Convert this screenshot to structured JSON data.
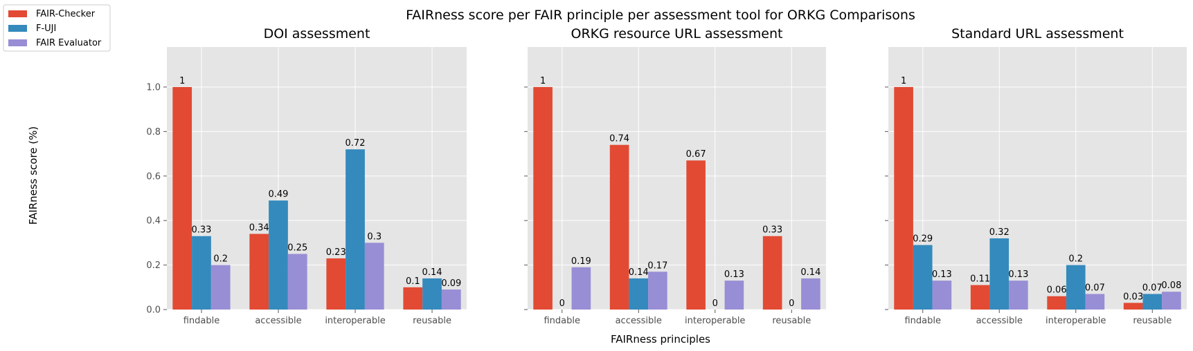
{
  "suptitle": "FAIRness score per FAIR principle per assessment tool for ORKG Comparisons",
  "ylabel": "FAIRness score (%)",
  "xlabel": "FAIRness principles",
  "colors": {
    "FAIR-Checker": "#E24A33",
    "F-UJI": "#348ABD",
    "FAIR Evaluator": "#988ED5",
    "panel_bg": "#E5E5E5",
    "grid": "#FFFFFF"
  },
  "legend": [
    "FAIR-Checker",
    "F-UJI",
    "FAIR Evaluator"
  ],
  "chart_data": [
    {
      "type": "bar",
      "title": "DOI assessment",
      "categories": [
        "findable",
        "accessible",
        "interoperable",
        "reusable"
      ],
      "ylim": [
        0,
        1.18
      ],
      "yticks": [
        "0.0",
        "0.2",
        "0.4",
        "0.6",
        "0.8",
        "1.0"
      ],
      "grid": true,
      "series": [
        {
          "name": "FAIR-Checker",
          "values": [
            1,
            0.34,
            0.23,
            0.1
          ],
          "labels": [
            "1",
            "0.34",
            "0.23",
            "0.1"
          ]
        },
        {
          "name": "F-UJI",
          "values": [
            0.33,
            0.49,
            0.72,
            0.14
          ],
          "labels": [
            "0.33",
            "0.49",
            "0.72",
            "0.14"
          ]
        },
        {
          "name": "FAIR Evaluator",
          "values": [
            0.2,
            0.25,
            0.3,
            0.09
          ],
          "labels": [
            "0.2",
            "0.25",
            "0.3",
            "0.09"
          ]
        }
      ]
    },
    {
      "type": "bar",
      "title": "ORKG resource URL assessment",
      "categories": [
        "findable",
        "accessible",
        "interoperable",
        "reusable"
      ],
      "ylim": [
        0,
        1.18
      ],
      "grid": true,
      "series": [
        {
          "name": "FAIR-Checker",
          "values": [
            1,
            0.74,
            0.67,
            0.33
          ],
          "labels": [
            "1",
            "0.74",
            "0.67",
            "0.33"
          ]
        },
        {
          "name": "F-UJI",
          "values": [
            0,
            0.14,
            0,
            0
          ],
          "labels": [
            "0",
            "0.14",
            "0",
            "0"
          ]
        },
        {
          "name": "FAIR Evaluator",
          "values": [
            0.19,
            0.17,
            0.13,
            0.14
          ],
          "labels": [
            "0.19",
            "0.17",
            "0.13",
            "0.14"
          ]
        }
      ]
    },
    {
      "type": "bar",
      "title": "Standard URL assessment",
      "categories": [
        "findable",
        "accessible",
        "interoperable",
        "reusable"
      ],
      "ylim": [
        0,
        1.18
      ],
      "grid": true,
      "series": [
        {
          "name": "FAIR-Checker",
          "values": [
            1,
            0.11,
            0.06,
            0.03
          ],
          "labels": [
            "1",
            "0.11",
            "0.06",
            "0.03"
          ]
        },
        {
          "name": "F-UJI",
          "values": [
            0.29,
            0.32,
            0.2,
            0.07
          ],
          "labels": [
            "0.29",
            "0.32",
            "0.2",
            "0.07"
          ]
        },
        {
          "name": "FAIR Evaluator",
          "values": [
            0.13,
            0.13,
            0.07,
            0.08
          ],
          "labels": [
            "0.13",
            "0.13",
            "0.07",
            "0.08"
          ]
        }
      ]
    }
  ]
}
